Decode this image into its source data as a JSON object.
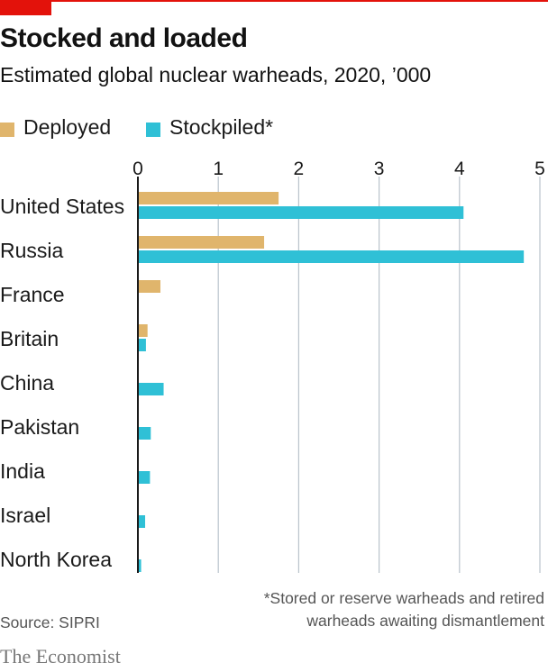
{
  "title": "Stocked and loaded",
  "subtitle": "Estimated global nuclear warheads, 2020, ’000",
  "legend": {
    "deployed": "Deployed",
    "stockpiled": "Stockpiled*"
  },
  "footnote_line1": "*Stored or reserve warheads and retired",
  "footnote_line2": "warheads awaiting dismantlement",
  "source": "Source: SIPRI",
  "brand": "The Economist",
  "colors": {
    "deployed": "#e0b56c",
    "stockpiled": "#2fc0d6",
    "grid": "#b9c3cb",
    "axis": "#1a1a1a",
    "brand_red": "#e3120b"
  },
  "chart_data": {
    "type": "bar",
    "orientation": "horizontal",
    "categories": [
      "United States",
      "Russia",
      "France",
      "Britain",
      "China",
      "Pakistan",
      "India",
      "Israel",
      "North Korea"
    ],
    "series": [
      {
        "name": "Deployed",
        "values": [
          1.75,
          1.57,
          0.28,
          0.12,
          0,
          0,
          0,
          0,
          0
        ]
      },
      {
        "name": "Stockpiled*",
        "values": [
          4.05,
          4.8,
          0.01,
          0.1,
          0.32,
          0.16,
          0.15,
          0.09,
          0.04
        ]
      }
    ],
    "xlim": [
      0,
      5
    ],
    "xticks": [
      "0",
      "1",
      "2",
      "3",
      "4",
      "5"
    ],
    "grid": true,
    "legend_position": "top-left"
  }
}
